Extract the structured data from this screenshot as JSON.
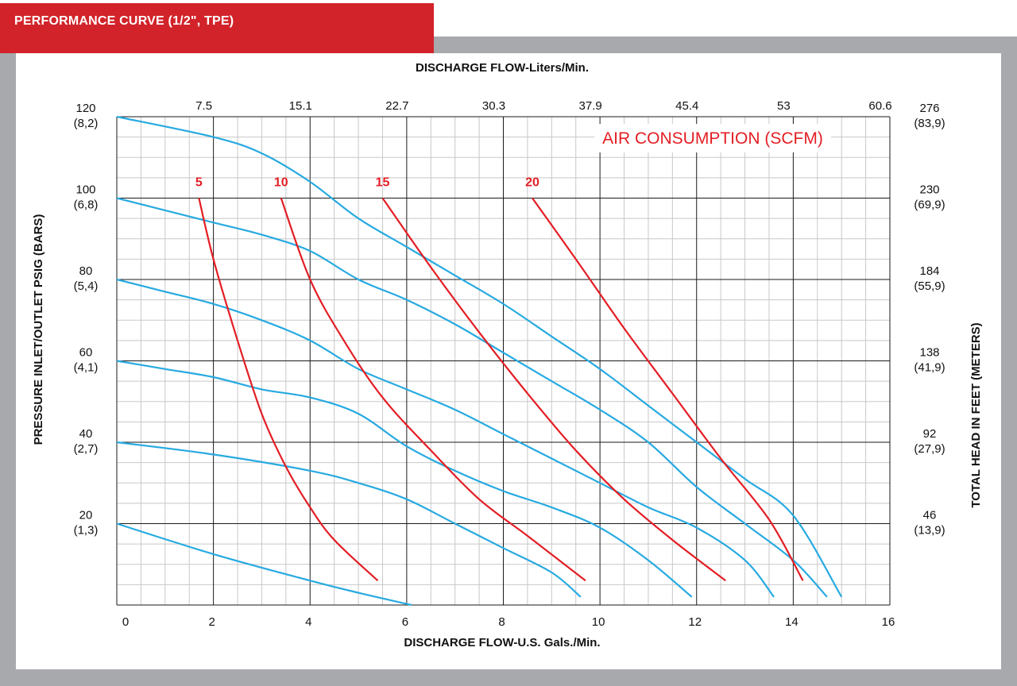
{
  "header": {
    "title": "PERFORMANCE CURVE (1/2\", TPE)"
  },
  "colors": {
    "title_bar": "#d2232a",
    "pump_curve": "#27aae1",
    "air_curve": "#e31e24",
    "frame": "#a7a9ac"
  },
  "chart_data": {
    "type": "line",
    "top_axis_title": "DISCHARGE FLOW-Liters/Min.",
    "top_ticks": [
      "7.5",
      "15.1",
      "22.7",
      "30.3",
      "37.9",
      "45.4",
      "53",
      "60.6"
    ],
    "xlabel": "DISCHARGE FLOW-U.S. Gals./Min.",
    "ylabel_left": "PRESSURE INLET/OUTLET PSIG (BARS)",
    "ylabel_right": "TOTAL HEAD IN FEET (METERS)",
    "x_ticks": [
      "0",
      "2",
      "4",
      "6",
      "8",
      "10",
      "12",
      "14",
      "16"
    ],
    "left_ticks": [
      {
        "psi": 120,
        "line1": "120",
        "line2": "(8,2)"
      },
      {
        "psi": 100,
        "line1": "100",
        "line2": "(6,8)"
      },
      {
        "psi": 80,
        "line1": "80",
        "line2": "(5,4)"
      },
      {
        "psi": 60,
        "line1": "60",
        "line2": "(4,1)"
      },
      {
        "psi": 40,
        "line1": "40",
        "line2": "(2,7)"
      },
      {
        "psi": 20,
        "line1": "20",
        "line2": "(1,3)"
      }
    ],
    "right_ticks": [
      {
        "psi": 120,
        "line1": "276",
        "line2": "(83,9)"
      },
      {
        "psi": 100,
        "line1": "230",
        "line2": "(69,9)"
      },
      {
        "psi": 80,
        "line1": "184",
        "line2": "(55,9)"
      },
      {
        "psi": 60,
        "line1": "138",
        "line2": "(41,9)"
      },
      {
        "psi": 40,
        "line1": "92",
        "line2": "(27,9)"
      },
      {
        "psi": 20,
        "line1": "46",
        "line2": "(13,9)"
      }
    ],
    "xlim": [
      0,
      16
    ],
    "ylim": [
      0,
      120
    ],
    "grid": true,
    "air_consumption_title": "AIR CONSUMPTION (SCFM)",
    "pump_curves": [
      {
        "inlet_psi": 120,
        "points": [
          [
            0,
            120
          ],
          [
            2,
            115
          ],
          [
            3,
            111
          ],
          [
            4,
            104
          ],
          [
            5,
            95
          ],
          [
            6,
            88
          ],
          [
            7,
            81
          ],
          [
            8,
            74
          ],
          [
            9,
            66
          ],
          [
            10,
            58
          ],
          [
            11,
            49
          ],
          [
            12,
            40
          ],
          [
            13,
            31
          ],
          [
            14,
            22
          ],
          [
            15,
            2
          ]
        ]
      },
      {
        "inlet_psi": 100,
        "points": [
          [
            0,
            100
          ],
          [
            1,
            97
          ],
          [
            2,
            94
          ],
          [
            3,
            91
          ],
          [
            4,
            87
          ],
          [
            5,
            80
          ],
          [
            6,
            75
          ],
          [
            7,
            69
          ],
          [
            8,
            62
          ],
          [
            9,
            55
          ],
          [
            10,
            48
          ],
          [
            11,
            40
          ],
          [
            12,
            29
          ],
          [
            13,
            20
          ],
          [
            14,
            11
          ],
          [
            14.7,
            2
          ]
        ]
      },
      {
        "inlet_psi": 80,
        "points": [
          [
            0,
            80
          ],
          [
            1,
            77
          ],
          [
            2,
            74
          ],
          [
            3,
            70
          ],
          [
            4,
            65
          ],
          [
            5,
            58
          ],
          [
            6,
            53
          ],
          [
            7,
            48
          ],
          [
            8,
            42
          ],
          [
            9,
            36
          ],
          [
            10,
            30
          ],
          [
            11,
            24
          ],
          [
            12,
            19
          ],
          [
            13,
            11
          ],
          [
            13.6,
            2
          ]
        ]
      },
      {
        "inlet_psi": 60,
        "points": [
          [
            0,
            60
          ],
          [
            1,
            58
          ],
          [
            2,
            56
          ],
          [
            3,
            53
          ],
          [
            4,
            51
          ],
          [
            5,
            47
          ],
          [
            6,
            39
          ],
          [
            7,
            33
          ],
          [
            8,
            28
          ],
          [
            9,
            24
          ],
          [
            10,
            19
          ],
          [
            11,
            11
          ],
          [
            11.9,
            2
          ]
        ]
      },
      {
        "inlet_psi": 40,
        "points": [
          [
            0,
            40
          ],
          [
            2,
            37
          ],
          [
            4,
            33
          ],
          [
            5,
            30
          ],
          [
            6,
            26
          ],
          [
            7,
            20
          ],
          [
            8,
            14
          ],
          [
            9,
            8
          ],
          [
            9.6,
            2
          ]
        ]
      },
      {
        "inlet_psi": 20,
        "points": [
          [
            0,
            20
          ],
          [
            2,
            12.5
          ],
          [
            4,
            6
          ],
          [
            5,
            3
          ],
          [
            6.1,
            0
          ]
        ]
      }
    ],
    "air_curves": [
      {
        "scfm": "5",
        "points": [
          [
            1.7,
            100
          ],
          [
            2,
            85
          ],
          [
            2.5,
            65
          ],
          [
            3,
            47
          ],
          [
            3.5,
            34
          ],
          [
            4,
            24
          ],
          [
            4.5,
            16
          ],
          [
            5.4,
            6
          ]
        ]
      },
      {
        "scfm": "10",
        "points": [
          [
            3.4,
            100
          ],
          [
            4,
            80
          ],
          [
            4.7,
            65
          ],
          [
            5.5,
            51
          ],
          [
            6.5,
            38
          ],
          [
            7.5,
            26
          ],
          [
            8.5,
            17
          ],
          [
            9.7,
            6
          ]
        ]
      },
      {
        "scfm": "15",
        "points": [
          [
            5.5,
            100
          ],
          [
            6.5,
            83
          ],
          [
            7.5,
            67
          ],
          [
            8.5,
            52
          ],
          [
            9.5,
            38
          ],
          [
            10.5,
            26
          ],
          [
            11.5,
            16
          ],
          [
            12.6,
            6
          ]
        ]
      },
      {
        "scfm": "20",
        "points": [
          [
            8.6,
            100
          ],
          [
            9.5,
            85
          ],
          [
            10.5,
            68
          ],
          [
            11.5,
            52
          ],
          [
            12.5,
            36
          ],
          [
            13.5,
            21
          ],
          [
            14.2,
            6
          ]
        ]
      }
    ]
  }
}
